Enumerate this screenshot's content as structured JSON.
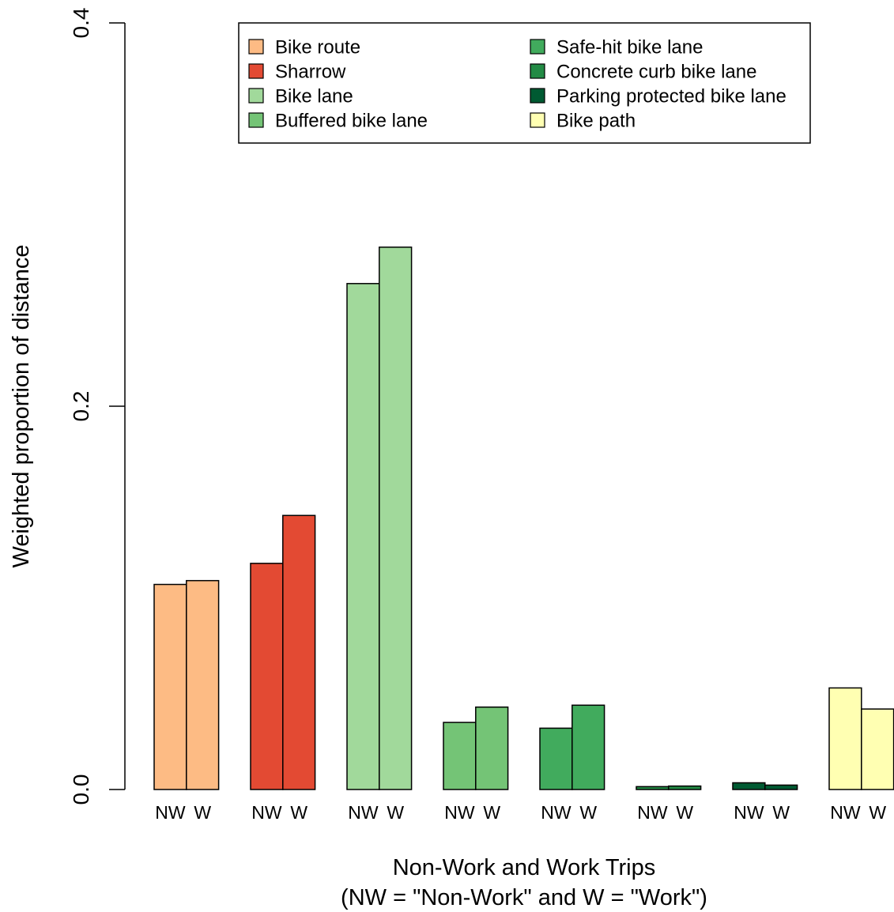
{
  "chart_data": {
    "type": "bar",
    "ylabel": "Weighted proportion of distance",
    "xlabel_lines": [
      "Non-Work and Work Trips",
      "(NW = \"Non-Work\" and W = \"Work\")"
    ],
    "ylim": [
      0,
      0.4
    ],
    "yticks": [
      "0.0",
      "0.2",
      "0.4"
    ],
    "ytick_values": [
      0,
      0.2,
      0.4
    ],
    "bar_labels": [
      "NW",
      "W"
    ],
    "categories": [
      "Bike route",
      "Sharrow",
      "Bike lane",
      "Buffered bike lane",
      "Safe-hit bike lane",
      "Concrete curb bike lane",
      "Parking protected bike lane",
      "Bike path"
    ],
    "colors": [
      "#fdbb84",
      "#e34a33",
      "#a1d99b",
      "#74c476",
      "#41ab5d",
      "#238b45",
      "#005a32",
      "#ffffb2"
    ],
    "series": [
      {
        "name": "NW",
        "values": [
          0.107,
          0.118,
          0.264,
          0.035,
          0.032,
          0.0015,
          0.0035,
          0.053
        ]
      },
      {
        "name": "W",
        "values": [
          0.109,
          0.143,
          0.283,
          0.043,
          0.044,
          0.0018,
          0.0023,
          0.042
        ]
      }
    ],
    "legend": {
      "placement": "top",
      "entries": [
        "Bike route",
        "Sharrow",
        "Bike lane",
        "Buffered bike lane",
        "Safe-hit bike lane",
        "Concrete curb bike lane",
        "Parking protected bike lane",
        "Bike path"
      ]
    },
    "grid": false
  }
}
